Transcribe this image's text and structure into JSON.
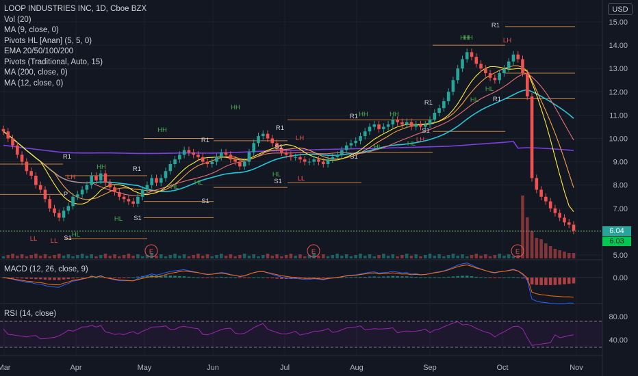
{
  "header": {
    "title": "LOOP INDUSTRIES INC, 1D, Cboe BZX",
    "currency": "USD"
  },
  "indicators": [
    "Vol (20)",
    "MA (9, close, 0)",
    "Pivots HL [Anan] (5, 5, 0)",
    "EMA 20/50/100/200",
    "Pivots (Traditional, Auto, 15)",
    "MA (200, close, 0)",
    "MA (12, close, 0)"
  ],
  "macd_label": "MACD (12, 26, close, 9)",
  "rsi_label": "RSI (14, close)",
  "last_price": "6.04",
  "last_price_2": "6.03",
  "colors": {
    "background": "#131722",
    "up": "#26a69a",
    "down": "#ef5350",
    "pivot_line": "#f7a04b",
    "rsi_line": "#9c27b0",
    "horizontal_line": "#4caf50"
  },
  "chart_data": {
    "type": "candlestick",
    "title": "LOOP INDUSTRIES INC, 1D, Cboe BZX",
    "x_ticks": [
      "Mar",
      "Apr",
      "May",
      "Jun",
      "Jul",
      "Aug",
      "Sep",
      "Oct",
      "Nov"
    ],
    "price_ticks": [
      "15.00",
      "14.00",
      "13.00",
      "12.00",
      "11.00",
      "10.00",
      "9.00",
      "8.00",
      "7.00",
      "6.00",
      "5.00"
    ],
    "macd_ticks": [
      "0.00"
    ],
    "rsi_ticks": [
      "80.00",
      "40.00"
    ],
    "ylim": [
      4.8,
      15.3
    ],
    "earnings_markers": [
      "E",
      "E",
      "E"
    ],
    "pivot_markers": [
      "HH",
      "HH",
      "HH",
      "HH",
      "HH",
      "HH",
      "HH",
      "LH",
      "LH",
      "LH",
      "LH",
      "HL",
      "HL",
      "HL",
      "HL",
      "HL",
      "HL",
      "HL",
      "HL",
      "HL",
      "LL",
      "LL",
      "LL",
      "LL",
      "R1",
      "R1",
      "R1",
      "R1",
      "R1",
      "R1",
      "R1",
      "R1",
      "S1",
      "S1",
      "S1",
      "S1",
      "S1",
      "S1",
      "S1",
      "P",
      "P"
    ],
    "series": [
      {
        "name": "Close",
        "values": [
          10.3,
          10.0,
          9.7,
          9.3,
          9.0,
          8.6,
          8.4,
          8.0,
          7.8,
          7.4,
          7.0,
          6.8,
          6.6,
          6.9,
          7.1,
          7.5,
          7.6,
          7.8,
          8.0,
          8.4,
          8.2,
          8.5,
          8.1,
          7.9,
          7.7,
          7.5,
          7.4,
          7.3,
          7.2,
          7.5,
          7.8,
          8.0,
          8.3,
          8.1,
          8.3,
          8.6,
          8.9,
          9.1,
          9.3,
          9.5,
          9.4,
          9.3,
          9.2,
          9.0,
          8.9,
          9.0,
          9.2,
          9.4,
          9.3,
          9.1,
          9.0,
          8.8,
          9.0,
          9.4,
          9.8,
          10.1,
          10.2,
          10.0,
          9.8,
          9.6,
          9.4,
          9.3,
          9.2,
          9.2,
          9.1,
          9.0,
          9.0,
          9.1,
          9.0,
          8.9,
          9.1,
          9.2,
          9.3,
          9.5,
          9.7,
          9.8,
          9.9,
          10.1,
          10.3,
          10.5,
          10.6,
          10.4,
          10.5,
          10.6,
          10.8,
          10.7,
          10.6,
          10.7,
          10.5,
          10.6,
          10.5,
          10.6,
          10.8,
          11.1,
          11.3,
          11.6,
          12.0,
          12.5,
          13.0,
          13.4,
          13.7,
          13.5,
          13.2,
          13.0,
          12.8,
          12.6,
          12.5,
          12.8,
          13.0,
          13.3,
          13.6,
          13.4,
          12.8,
          11.8,
          8.3,
          7.8,
          7.5,
          7.3,
          7.0,
          6.8,
          6.6,
          6.4,
          6.3,
          6.04
        ]
      }
    ]
  }
}
